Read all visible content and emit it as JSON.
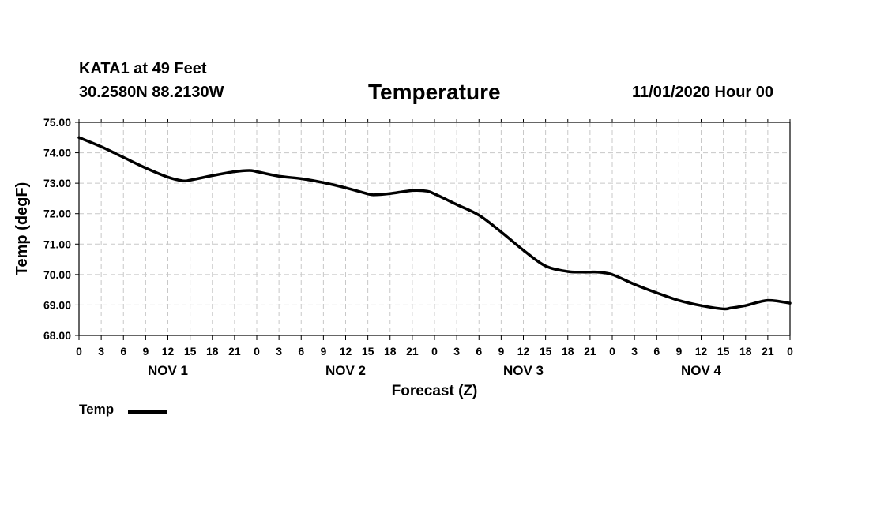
{
  "header": {
    "station": "KATA1 at 49 Feet",
    "coordinates": "30.2580N 88.2130W",
    "title": "Temperature",
    "datetime": "11/01/2020 Hour 00"
  },
  "chart_data": {
    "type": "line",
    "title": "Temperature",
    "ylabel": "Temp (degF)",
    "xlabel": "Forecast (Z)",
    "ylim": [
      68,
      75
    ],
    "xlim": [
      0,
      96
    ],
    "y_ticks": [
      "68.00",
      "69.00",
      "70.00",
      "71.00",
      "72.00",
      "73.00",
      "74.00",
      "75.00"
    ],
    "x_tick_labels": [
      "0",
      "3",
      "6",
      "9",
      "12",
      "15",
      "18",
      "21",
      "0",
      "3",
      "6",
      "9",
      "12",
      "15",
      "18",
      "21",
      "0",
      "3",
      "6",
      "9",
      "12",
      "15",
      "18",
      "21",
      "0",
      "3",
      "6",
      "9",
      "12",
      "15",
      "18",
      "21",
      "0"
    ],
    "day_labels": [
      {
        "label": "NOV 1",
        "hour": 12
      },
      {
        "label": "NOV 2",
        "hour": 36
      },
      {
        "label": "NOV 3",
        "hour": 60
      },
      {
        "label": "NOV 4",
        "hour": 84
      }
    ],
    "grid": true,
    "legend": {
      "position": "bottom-left",
      "entries": [
        "Temp"
      ]
    },
    "series": [
      {
        "name": "Temp",
        "color": "#000000",
        "x": [
          0,
          3,
          6,
          9,
          12,
          14,
          15,
          18,
          21,
          23,
          24,
          27,
          30,
          33,
          36,
          39,
          40,
          42,
          45,
          47,
          48,
          51,
          54,
          57,
          60,
          63,
          66,
          68,
          69,
          70,
          72,
          75,
          78,
          81,
          84,
          87,
          88,
          90,
          93,
          96
        ],
        "values": [
          74.5,
          74.2,
          73.85,
          73.5,
          73.2,
          73.08,
          73.1,
          73.25,
          73.38,
          73.42,
          73.38,
          73.23,
          73.15,
          73.02,
          72.85,
          72.65,
          72.62,
          72.66,
          72.76,
          72.74,
          72.65,
          72.3,
          71.95,
          71.4,
          70.8,
          70.28,
          70.1,
          70.08,
          70.08,
          70.08,
          70.0,
          69.68,
          69.4,
          69.15,
          68.98,
          68.87,
          68.9,
          68.98,
          69.15,
          69.06
        ]
      }
    ]
  },
  "legend": {
    "label": "Temp"
  }
}
